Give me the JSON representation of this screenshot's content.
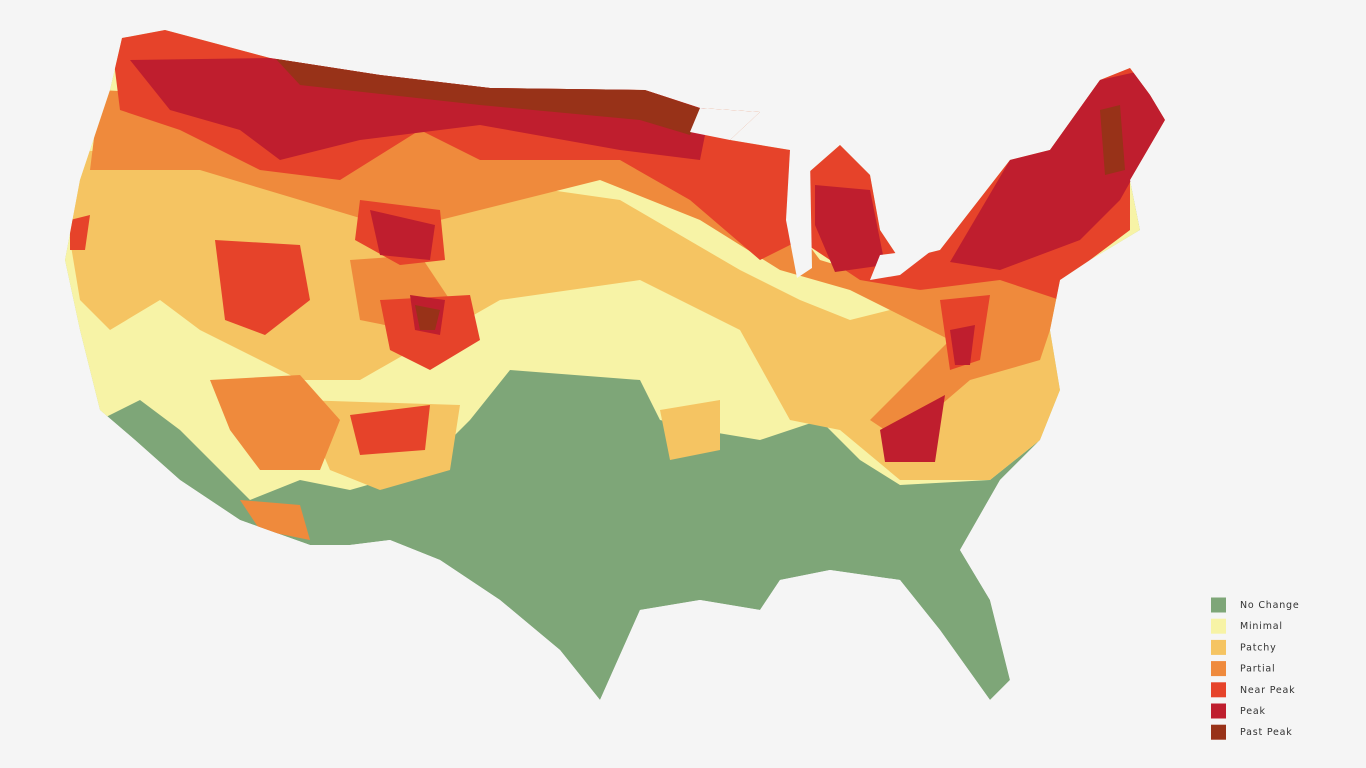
{
  "legend": {
    "items": [
      {
        "label": "No Change",
        "color": "#7ea678"
      },
      {
        "label": "Minimal",
        "color": "#f7f3a6"
      },
      {
        "label": "Patchy",
        "color": "#f5c462"
      },
      {
        "label": "Partial",
        "color": "#ef8a3c"
      },
      {
        "label": "Near Peak",
        "color": "#e6432a"
      },
      {
        "label": "Peak",
        "color": "#bf1e2e"
      },
      {
        "label": "Past Peak",
        "color": "#983218"
      }
    ]
  }
}
